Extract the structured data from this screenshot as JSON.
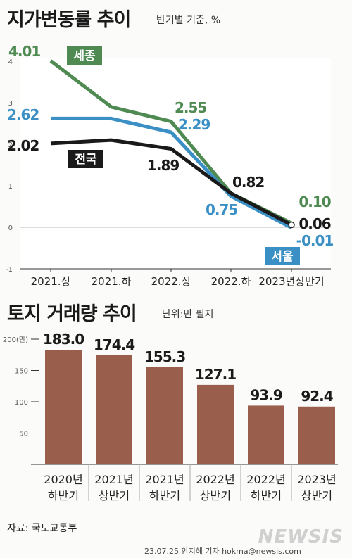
{
  "header1": {
    "title": "지가변동률 추이",
    "subtitle": "반기별 기준, %"
  },
  "header2": {
    "title": "토지 거래량 추이",
    "subtitle": "단위:만 필지"
  },
  "source": "자료: 국토교통부",
  "credit": "23.07.25 안지혜 기자 hokma@newsis.com",
  "watermark": "NEWSIS",
  "colors": {
    "sejong": "#4e8a52",
    "national": "#3a8fc4",
    "seoul": "#1a1a1a",
    "bar": "#9a5e4d"
  },
  "chart_data": [
    {
      "type": "line",
      "categories": [
        "2021.상",
        "2021.하",
        "2022.상",
        "2022.하",
        "2023년상반기"
      ],
      "ylim": [
        -1,
        4
      ],
      "yticks": [
        "-1",
        "0",
        "1",
        "2",
        "3",
        "4"
      ],
      "series": [
        {
          "name": "세종",
          "values": [
            4.01,
            2.9,
            2.55,
            0.82,
            0.1
          ],
          "labels": [
            "4.01",
            "",
            "2.55",
            "",
            "0.10"
          ]
        },
        {
          "name": "서울",
          "values": [
            2.62,
            2.62,
            2.29,
            0.75,
            -0.01
          ],
          "labels": [
            "2.62",
            "",
            "2.29",
            "0.75",
            "-0.01"
          ]
        },
        {
          "name": "전국",
          "values": [
            2.02,
            2.1,
            1.89,
            0.82,
            0.06
          ],
          "labels": [
            "2.02",
            "",
            "1.89",
            "0.82",
            "0.06"
          ]
        }
      ]
    },
    {
      "type": "bar",
      "categories": [
        "2020년\n하반기",
        "2021년\n상반기",
        "2021년\n하반기",
        "2022년\n상반기",
        "2022년\n하반기",
        "2023년\n상반기"
      ],
      "values": [
        183.0,
        174.4,
        155.3,
        127.1,
        93.9,
        92.4
      ],
      "value_labels": [
        "183.0",
        "174.4",
        "155.3",
        "127.1",
        "93.9",
        "92.4"
      ],
      "ylim": [
        0,
        200
      ],
      "yticks": [
        "50",
        "100",
        "150",
        "200(만)"
      ]
    }
  ]
}
